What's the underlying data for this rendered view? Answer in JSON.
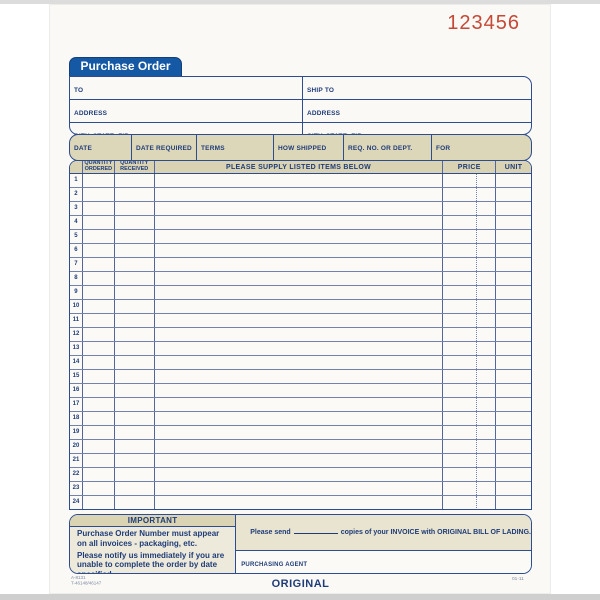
{
  "form_number": "123456",
  "title": "Purchase Order",
  "address_box": {
    "to": {
      "line1": "TO",
      "line2": "ADDRESS",
      "line3": "CITY, STATE, ZIP"
    },
    "ship_to": {
      "line1": "SHIP TO",
      "line2": "ADDRESS",
      "line3": "CITY, STATE, ZIP"
    }
  },
  "detail_fields": [
    "DATE",
    "DATE REQUIRED",
    "TERMS",
    "HOW SHIPPED",
    "REQ. NO. OR DEPT.",
    "FOR"
  ],
  "table": {
    "headers": {
      "quantity_ordered": "QUANTITY ORDERED",
      "quantity_received": "QUANTITY RECEIVED",
      "description": "PLEASE SUPPLY LISTED ITEMS BELOW",
      "price": "PRICE",
      "unit": "UNIT"
    },
    "row_count": 24,
    "row_numbers": [
      "1",
      "2",
      "3",
      "4",
      "5",
      "6",
      "7",
      "8",
      "9",
      "10",
      "11",
      "12",
      "13",
      "14",
      "15",
      "16",
      "17",
      "18",
      "19",
      "20",
      "21",
      "22",
      "23",
      "24"
    ]
  },
  "footer": {
    "important_title": "IMPORTANT",
    "important_line1": "Purchase Order Number must appear on all invoices - packaging, etc.",
    "important_line2": "Please notify us immediately if you are unable to complete the order by date specified.",
    "send_prefix": "Please send",
    "send_suffix": "copies of your INVOICE with ORIGINAL BILL OF LADING.",
    "purchasing_agent_label": "PURCHASING AGENT",
    "copy_label": "ORIGINAL",
    "stock_code_line1": "A-8131",
    "stock_code_line2": "T-46148/46147",
    "revision_code": "01-11"
  },
  "colors": {
    "tab_blue": "#1558a4",
    "line_blue": "#2e4d8e",
    "text_blue": "#1f3c78",
    "header_tan": "#dbd4b4",
    "panel_tan": "#eeeadb",
    "form_number_red": "#c74836",
    "paper": "#faf9f6"
  }
}
